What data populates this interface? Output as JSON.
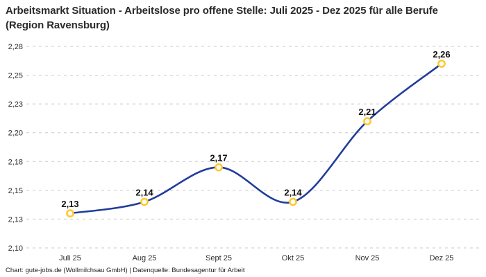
{
  "header": {
    "title": "Arbeitsmarkt Situation - Arbeitslose pro offene Stelle: Juli 2025 - Dez 2025 für alle Berufe (Region Ravensburg)"
  },
  "footer": {
    "credit": "Chart: gute-jobs.de (Wollmilchsau GmbH) | Datenquelle: Bundesagentur für Arbeit"
  },
  "chart_data": {
    "type": "line",
    "title": "Arbeitsmarkt Situation - Arbeitslose pro offene Stelle: Juli 2025 - Dez 2025 für alle Berufe (Region Ravensburg)",
    "categories": [
      "Juli 25",
      "Aug 25",
      "Sept 25",
      "Okt 25",
      "Nov 25",
      "Dez 25"
    ],
    "values": [
      2.13,
      2.14,
      2.17,
      2.14,
      2.21,
      2.26
    ],
    "point_labels": [
      "2,13",
      "2,14",
      "2,17",
      "2,14",
      "2,21",
      "2,26"
    ],
    "xlabel": "",
    "ylabel": "",
    "ylim": [
      2.1,
      2.275
    ],
    "y_ticks": [
      {
        "value": 2.275,
        "label": "2,28"
      },
      {
        "value": 2.25,
        "label": "2,25"
      },
      {
        "value": 2.225,
        "label": "2,23"
      },
      {
        "value": 2.2,
        "label": "2,20"
      },
      {
        "value": 2.175,
        "label": "2,18"
      },
      {
        "value": 2.15,
        "label": "2,15"
      },
      {
        "value": 2.125,
        "label": "2,13"
      },
      {
        "value": 2.1,
        "label": "2,10"
      }
    ],
    "grid": "horizontal-dashed",
    "legend": "none",
    "line_style": "smooth-spline",
    "colors": {
      "line": "#213c9b",
      "marker_stroke": "#ffc72c",
      "marker_fill": "#ffffff",
      "grid": "#c9c9c9",
      "title_text": "#2b2b2b",
      "axis_text": "#2e2e2e",
      "point_label_text": "#111111"
    }
  }
}
